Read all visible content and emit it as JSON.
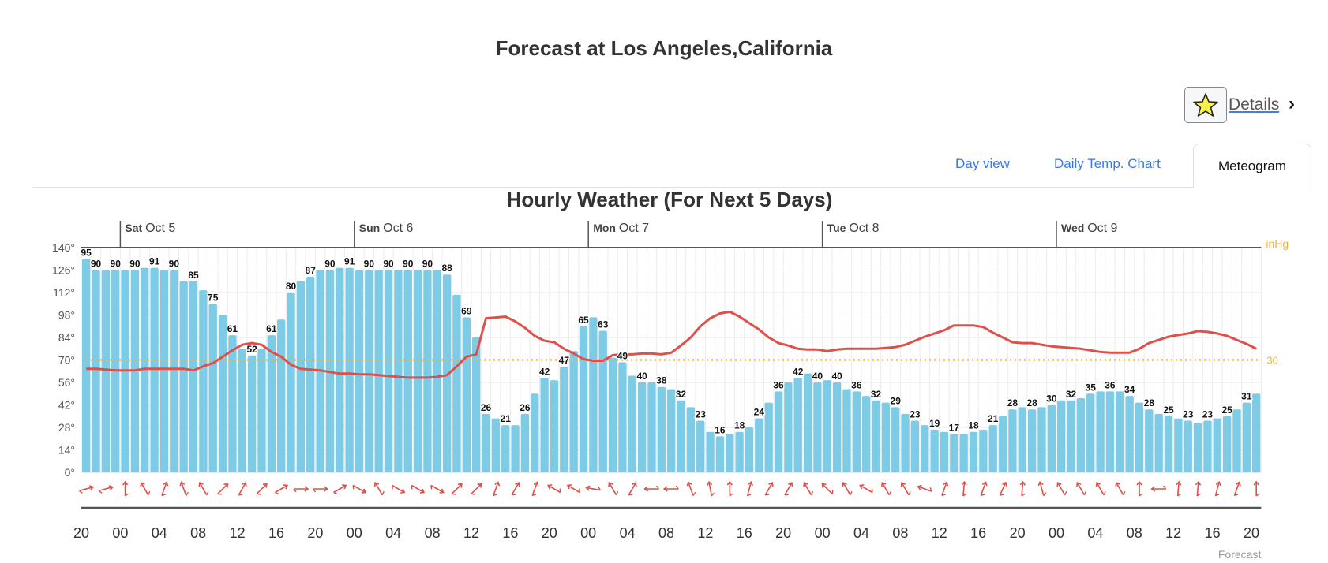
{
  "header": {
    "title": "Forecast at Los Angeles,California",
    "details_label": "Details",
    "favorite_icon": "star-icon",
    "chevron_icon": "chevron-right-icon"
  },
  "tabs": [
    {
      "label": "Day view",
      "active": false
    },
    {
      "label": "Daily Temp. Chart",
      "active": false
    },
    {
      "label": "Meteogram",
      "active": true
    }
  ],
  "colors": {
    "bars": "#7ecbe6",
    "pressure_line": "#e0504a",
    "pressure_ref": "#f0b43c",
    "tab_link": "#3b78e7",
    "wind_arrows": "#e0504a"
  },
  "chart_data": {
    "type": "bar",
    "title": "Hourly Weather (For Next 5 Days)",
    "credit": "Forecast",
    "grid": true,
    "ylim": [
      0,
      140
    ],
    "y_ticks": [
      "0°",
      "14°",
      "28°",
      "42°",
      "56°",
      "70°",
      "84°",
      "98°",
      "112°",
      "126°",
      "140°"
    ],
    "y2_label": "inHg",
    "y2_ticks": [
      {
        "value": 30,
        "label": "30"
      }
    ],
    "days": [
      {
        "dow": "Sat",
        "date": "Oct 5"
      },
      {
        "dow": "Sun",
        "date": "Oct 6"
      },
      {
        "dow": "Mon",
        "date": "Oct 7"
      },
      {
        "dow": "Tue",
        "date": "Oct 8"
      },
      {
        "dow": "Wed",
        "date": "Oct 9"
      }
    ],
    "x_ticks": [
      "20",
      "00",
      "04",
      "08",
      "12",
      "16",
      "20",
      "00",
      "04",
      "08",
      "12",
      "16",
      "20",
      "00",
      "04",
      "08",
      "12",
      "16",
      "20",
      "00",
      "04",
      "08",
      "12",
      "16",
      "20",
      "00",
      "04",
      "08",
      "12",
      "16",
      "20"
    ],
    "series": [
      {
        "kind": "bar",
        "values": [
          95,
          90,
          90,
          90,
          90,
          90,
          91,
          91,
          90,
          90,
          85,
          85,
          81,
          75,
          70,
          61,
          55,
          52,
          55,
          61,
          68,
          80,
          85,
          87,
          90,
          90,
          91,
          91,
          90,
          90,
          90,
          90,
          90,
          90,
          90,
          90,
          90,
          88,
          79,
          69,
          60,
          26,
          24,
          21,
          21,
          26,
          35,
          42,
          41,
          47,
          54,
          65,
          69,
          63,
          51,
          49,
          43,
          40,
          40,
          38,
          37,
          32,
          29,
          23,
          18,
          16,
          17,
          18,
          20,
          24,
          31,
          36,
          40,
          42,
          44,
          40,
          41,
          40,
          37,
          36,
          34,
          32,
          31,
          29,
          26,
          23,
          21,
          19,
          18,
          17,
          17,
          18,
          19,
          21,
          25,
          28,
          29,
          28,
          29,
          30,
          32,
          32,
          33,
          35,
          36,
          36,
          36,
          34,
          31,
          28,
          26,
          25,
          24,
          23,
          22,
          23,
          24,
          25,
          28,
          31,
          35
        ]
      },
      {
        "kind": "line",
        "unit": "inHg",
        "values": [
          29.989,
          29.989,
          29.988,
          29.987,
          29.987,
          29.987,
          29.989,
          29.989,
          29.989,
          29.989,
          29.989,
          29.987,
          29.992,
          29.996,
          30.004,
          30.012,
          30.019,
          30.021,
          30.019,
          30.01,
          30.004,
          29.994,
          29.989,
          29.988,
          29.987,
          29.985,
          29.983,
          29.983,
          29.982,
          29.982,
          29.981,
          29.98,
          29.979,
          29.978,
          29.978,
          29.978,
          29.979,
          29.981,
          29.992,
          30.004,
          30.007,
          30.052,
          30.053,
          30.054,
          30.048,
          30.04,
          30.03,
          30.024,
          30.022,
          30.014,
          30.008,
          30.001,
          29.999,
          29.999,
          30.006,
          30.007,
          30.007,
          30.008,
          30.008,
          30.007,
          30.009,
          30.018,
          30.028,
          30.042,
          30.052,
          30.058,
          30.06,
          30.054,
          30.046,
          30.038,
          30.028,
          30.021,
          30.018,
          30.014,
          30.013,
          30.013,
          30.011,
          30.013,
          30.014,
          30.014,
          30.014,
          30.014,
          30.015,
          30.016,
          30.019,
          30.024,
          30.029,
          30.033,
          30.037,
          30.043,
          30.043,
          30.043,
          30.041,
          30.034,
          30.028,
          30.022,
          30.021,
          30.021,
          30.019,
          30.017,
          30.016,
          30.015,
          30.014,
          30.012,
          30.01,
          30.009,
          30.009,
          30.009,
          30.014,
          30.021,
          30.025,
          30.029,
          30.031,
          30.033,
          30.036,
          30.035,
          30.033,
          30.03,
          30.025,
          30.02,
          30.014
        ]
      },
      {
        "kind": "wind",
        "direction_deg": [
          75,
          75,
          0,
          330,
          20,
          340,
          330,
          45,
          30,
          45,
          60,
          90,
          90,
          60,
          120,
          330,
          120,
          120,
          120,
          45,
          45,
          20,
          30,
          20,
          300,
          300,
          280,
          330,
          30,
          270,
          270,
          340,
          350,
          0,
          15,
          30,
          30,
          330,
          315,
          330,
          300,
          330,
          330,
          290,
          20,
          5,
          20,
          25,
          5,
          345,
          330,
          330,
          330,
          330,
          0,
          270,
          5,
          5,
          15,
          20,
          0
        ]
      }
    ]
  }
}
